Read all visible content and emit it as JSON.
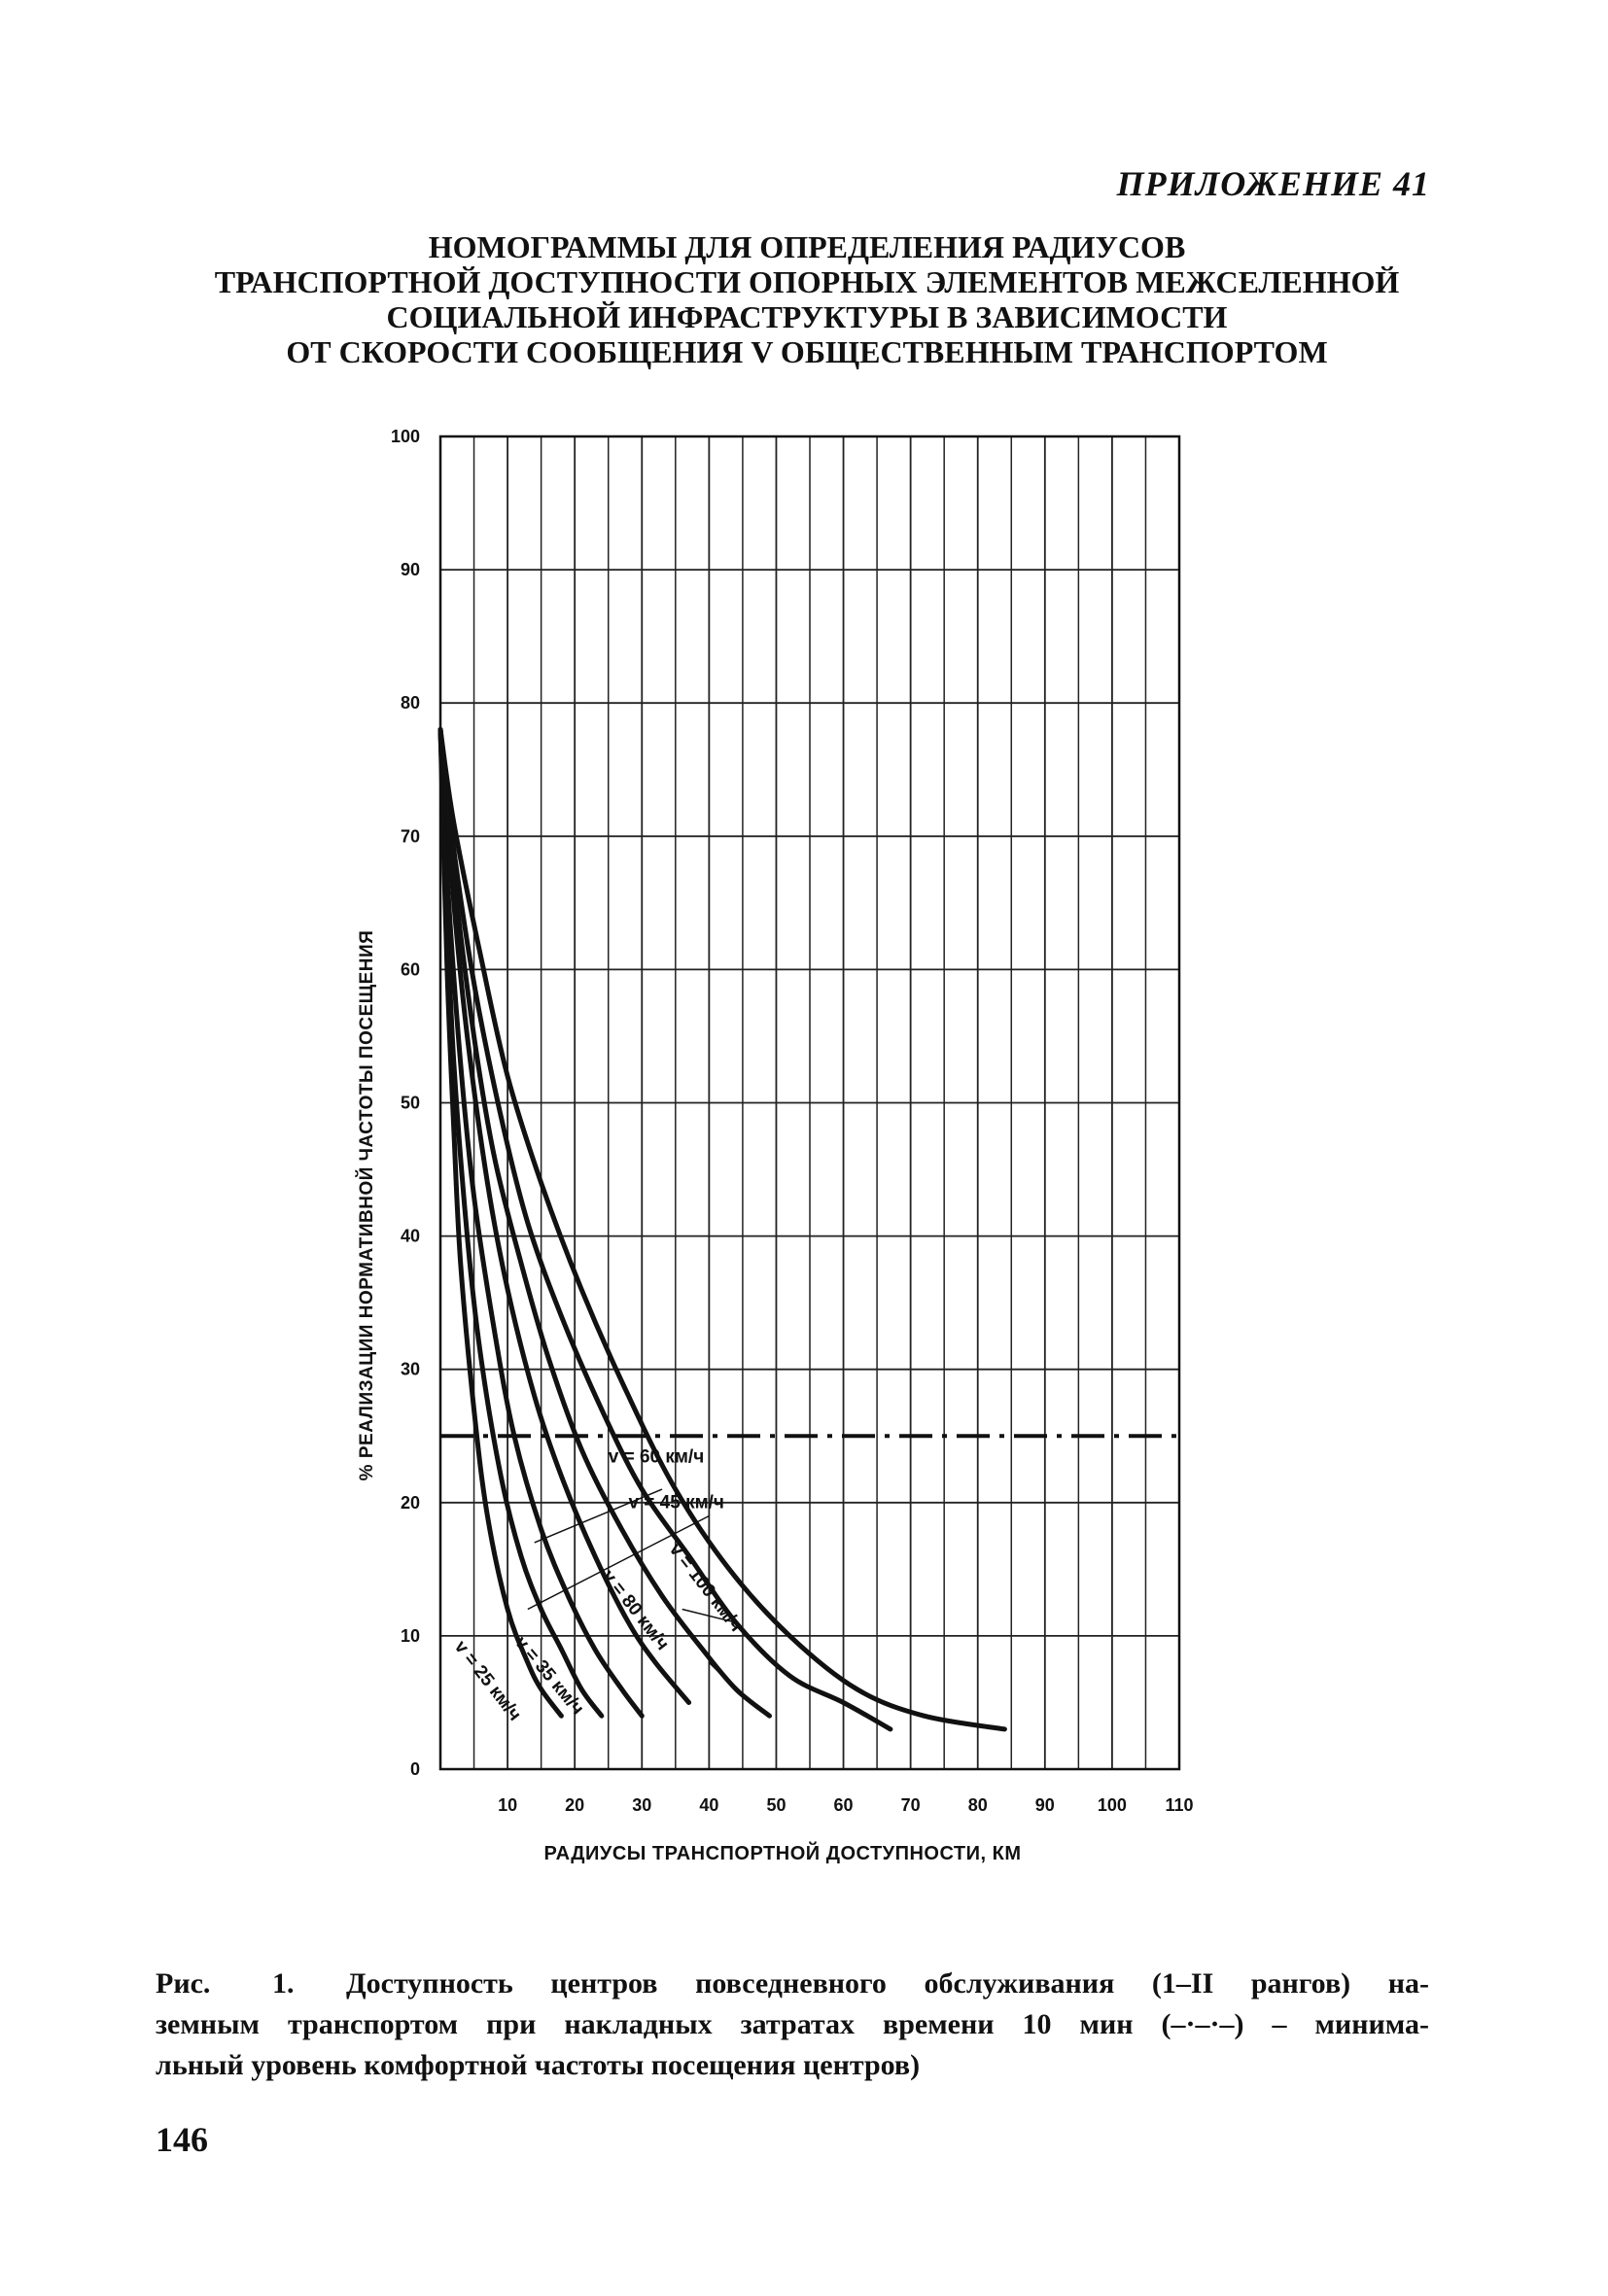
{
  "header": {
    "appendix": "ПРИЛОЖЕНИЕ 41"
  },
  "title_lines": [
    "НОМОГРАММЫ ДЛЯ ОПРЕДЕЛЕНИЯ РАДИУСОВ",
    "ТРАНСПОРТНОЙ ДОСТУПНОСТИ ОПОРНЫХ ЭЛЕМЕНТОВ МЕЖСЕЛЕННОЙ",
    "СОЦИАЛЬНОЙ ИНФРАСТРУКТУРЫ В ЗАВИСИМОСТИ",
    "ОТ СКОРОСТИ СООБЩЕНИЯ  V  ОБЩЕСТВЕННЫМ ТРАНСПОРТОМ"
  ],
  "chart_data": {
    "type": "line",
    "xlabel": "РАДИУСЫ ТРАНСПОРТНОЙ  ДОСТУПНОСТИ, КМ",
    "ylabel": "% РЕАЛИЗАЦИИ НОРМАТИВНОЙ ЧАСТОТЫ ПОСЕЩЕНИЯ",
    "xlim": [
      0,
      110
    ],
    "ylim": [
      0,
      100
    ],
    "x_ticks": [
      10,
      20,
      30,
      40,
      50,
      60,
      70,
      80,
      90,
      100,
      110
    ],
    "y_ticks": [
      0,
      10,
      20,
      30,
      40,
      50,
      60,
      70,
      80,
      90,
      100
    ],
    "grid": true,
    "threshold": {
      "y": 25,
      "style": "dash-dot"
    },
    "series": [
      {
        "name": "v = 25 км/ч",
        "points": [
          [
            0,
            78
          ],
          [
            1,
            60
          ],
          [
            2,
            48
          ],
          [
            3,
            38
          ],
          [
            5,
            27
          ],
          [
            7,
            19
          ],
          [
            10,
            12
          ],
          [
            13,
            8
          ],
          [
            15,
            6
          ],
          [
            18,
            4
          ]
        ]
      },
      {
        "name": "",
        "points": [
          [
            0,
            78
          ],
          [
            1,
            64
          ],
          [
            2,
            53
          ],
          [
            4,
            40
          ],
          [
            6,
            31
          ],
          [
            9,
            22
          ],
          [
            12,
            16
          ],
          [
            15,
            12
          ],
          [
            18,
            9
          ],
          [
            21,
            6
          ],
          [
            24,
            4
          ]
        ]
      },
      {
        "name": "v = 35 км/ч",
        "points": [
          [
            0,
            78
          ],
          [
            1,
            67
          ],
          [
            3,
            53
          ],
          [
            5,
            43
          ],
          [
            8,
            33
          ],
          [
            11,
            25
          ],
          [
            15,
            18
          ],
          [
            19,
            13
          ],
          [
            23,
            9
          ],
          [
            27,
            6
          ],
          [
            30,
            4
          ]
        ]
      },
      {
        "name": "",
        "points": [
          [
            0,
            78
          ],
          [
            2,
            65
          ],
          [
            4,
            55
          ],
          [
            7,
            44
          ],
          [
            10,
            36
          ],
          [
            14,
            28
          ],
          [
            18,
            22
          ],
          [
            23,
            16
          ],
          [
            28,
            11
          ],
          [
            32,
            8
          ],
          [
            37,
            5
          ]
        ]
      },
      {
        "name": "v = 45 км/ч",
        "points": [
          [
            0,
            78
          ],
          [
            2,
            67
          ],
          [
            5,
            55
          ],
          [
            8,
            46
          ],
          [
            12,
            38
          ],
          [
            16,
            31
          ],
          [
            21,
            24
          ],
          [
            27,
            18
          ],
          [
            33,
            13
          ],
          [
            39,
            9
          ],
          [
            44,
            6
          ],
          [
            49,
            4
          ]
        ]
      },
      {
        "name": "v = 60 км/ч",
        "points": [
          [
            0,
            78
          ],
          [
            2,
            69
          ],
          [
            5,
            59
          ],
          [
            9,
            49
          ],
          [
            13,
            41
          ],
          [
            18,
            34
          ],
          [
            24,
            27
          ],
          [
            30,
            21
          ],
          [
            37,
            16
          ],
          [
            44,
            11
          ],
          [
            52,
            7
          ],
          [
            60,
            5
          ],
          [
            67,
            3
          ]
        ]
      },
      {
        "name": "v = 80 км/ч",
        "points": [
          [
            0,
            78
          ],
          [
            2,
            71
          ],
          [
            6,
            61
          ],
          [
            10,
            52
          ],
          [
            15,
            44
          ],
          [
            21,
            36
          ],
          [
            28,
            28
          ],
          [
            35,
            21
          ],
          [
            43,
            15
          ],
          [
            52,
            10
          ],
          [
            62,
            6
          ],
          [
            72,
            4
          ],
          [
            84,
            3
          ]
        ]
      }
    ],
    "annotations": [
      "v = 60 км/ч",
      "v = 45 км/ч",
      "v = 100 км/ч",
      "v = 80 км/ч",
      "v = 35 км/ч",
      "v = 25 км/ч"
    ]
  },
  "caption": {
    "label": "Рис.",
    "number": "1.",
    "line1": "Доступность центров повседневного обслуживания (1–II рангов) на-",
    "line2": "земным транспортом при накладных затратах времени 10 мин (–·–·–) – минима-",
    "line3": "льный уровень комфортной частоты посещения центров)"
  },
  "page_number": "146"
}
